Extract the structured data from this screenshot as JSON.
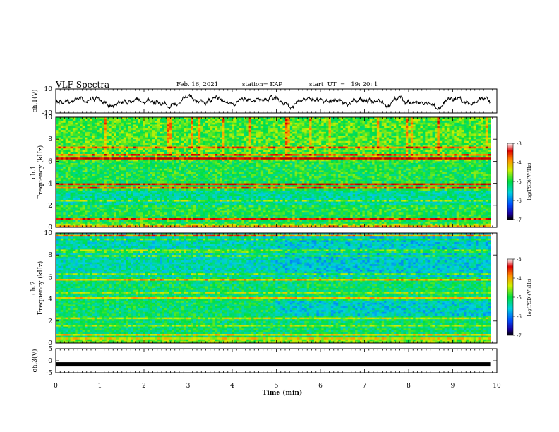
{
  "header": {
    "title": "VLF Spectra",
    "date": "Feb. 16, 2021",
    "station": "station= KAP",
    "start": "start  UT  =   19: 20: 1"
  },
  "colors": {
    "spectrum_low": "#0000cc",
    "spectrum_mid": "#00e070",
    "spectrum_high": "#e00000",
    "trace": "#000000"
  },
  "chart_data": [
    {
      "type": "line",
      "name": "ch1-waveform",
      "ylabel": "ch.1(V)",
      "ylim": [
        -10,
        10
      ],
      "yticks": [
        "10",
        "-10"
      ],
      "x_range_min": [
        0,
        9.85
      ],
      "description_values": "noisy waveform oscillating roughly between -8 and 8 V"
    },
    {
      "type": "heatmap",
      "name": "ch1-spectrogram",
      "ylabel": "ch.1\nFrequency (kHz)",
      "ylabel_line1": "ch.1",
      "ylabel_line2": "Frequency (kHz)",
      "ylim": [
        0,
        10
      ],
      "yticks": [
        "0",
        "2",
        "4",
        "6",
        "8",
        "10"
      ],
      "colorbar": {
        "label": "log(PSD)(V²/Hz)",
        "range": [
          -7,
          -3
        ],
        "ticks": [
          "-3",
          "-4",
          "-5",
          "-6",
          "-7"
        ]
      }
    },
    {
      "type": "heatmap",
      "name": "ch2-spectrogram",
      "ylabel_line1": "ch.2",
      "ylabel_line2": "Frequency (kHz)",
      "ylim": [
        0,
        10
      ],
      "yticks": [
        "0",
        "2",
        "4",
        "6",
        "8",
        "10"
      ],
      "colorbar": {
        "label": "log(PSD)(V²/Hz)",
        "range": [
          -7,
          -3
        ],
        "ticks": [
          "-3",
          "-4",
          "-5",
          "-6",
          "-7"
        ]
      }
    },
    {
      "type": "line",
      "name": "ch3-trace",
      "ylabel": "ch.3(V)",
      "ylim": [
        -5,
        5
      ],
      "yticks": [
        "5",
        "0",
        "-5"
      ],
      "level": -1.5
    }
  ],
  "xaxis": {
    "label": "Time  (min)",
    "range": [
      0,
      10
    ],
    "ticks": [
      "0",
      "1",
      "2",
      "3",
      "4",
      "5",
      "6",
      "7",
      "8",
      "9",
      "10"
    ]
  }
}
